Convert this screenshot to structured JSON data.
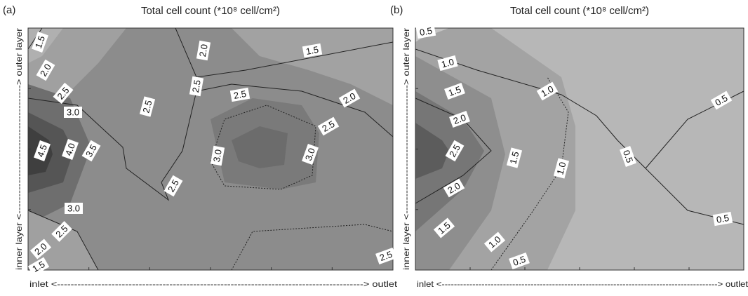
{
  "chart_data": [
    {
      "type": "contour",
      "panel": "(a)",
      "title": "Total cell count (*10⁸ cell/cm²)",
      "x_label": "inlet <------------------------------------------------------------------------------------------> outlet",
      "y_label": "inner layer <--------------------------------------> outer layer",
      "values": [
        1.5,
        2,
        2.5,
        3,
        4.5,
        4,
        3.5,
        3,
        2.5,
        2,
        1.5,
        2.5,
        2,
        2.5,
        2.5,
        1.5,
        2,
        2.5,
        3,
        3,
        2.5,
        2.5
      ],
      "value_labels": [
        "1.5",
        "2.0",
        "2.5",
        "3.0",
        "4.5",
        "4.0",
        "3.5",
        "3.0",
        "2.5",
        "2.0",
        "1.5",
        "2.5",
        "2.0",
        "2.5",
        "2.5",
        "1.5",
        "2.0",
        "2.5",
        "3.0",
        "3.0",
        "2.5",
        "2.5"
      ]
    },
    {
      "type": "contour",
      "panel": "(b)",
      "title": "Total cell count (*10⁸ cell/cm²)",
      "x_label": "inlet <------------------------------------------------------------------------------------------> outlet",
      "y_label": "inner layer <--------------------------------------> outer layer",
      "values": [
        0.5,
        1,
        1.5,
        2,
        2.5,
        2,
        1.5,
        1,
        0.5,
        1.5,
        1,
        1,
        0.5,
        0.5,
        0.5
      ],
      "value_labels": [
        "0.5",
        "1.0",
        "1.5",
        "2.0",
        "2.5",
        "2.0",
        "1.5",
        "1.0",
        "0.5",
        "1.5",
        "1.0",
        "1.0",
        "0.5",
        "0.5",
        "0.5"
      ]
    }
  ]
}
